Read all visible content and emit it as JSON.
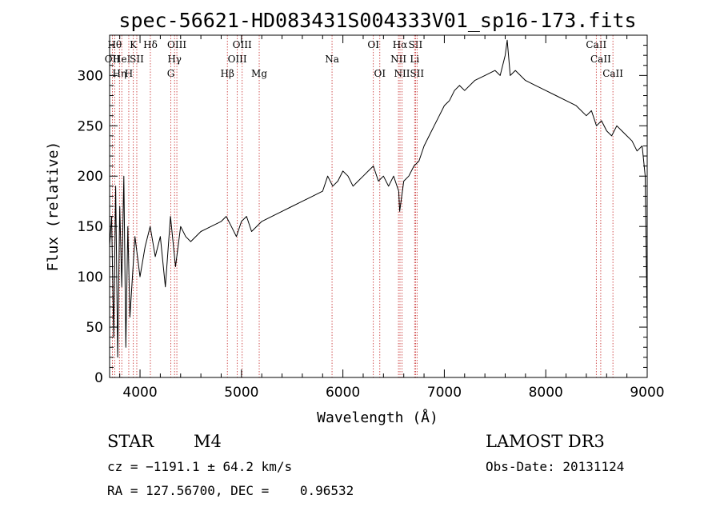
{
  "chart_data": {
    "type": "line",
    "title": "spec-56621-HD083431S004333V01_sp16-173.fits",
    "xlabel": "Wavelength (Å)",
    "ylabel": "Flux (relative)",
    "xlim": [
      3700,
      9000
    ],
    "ylim": [
      0,
      340
    ],
    "x_ticks": [
      4000,
      5000,
      6000,
      7000,
      8000,
      9000
    ],
    "y_ticks": [
      0,
      50,
      100,
      150,
      200,
      250,
      300
    ],
    "grid": false,
    "series": [
      {
        "x": [
          3700,
          3720,
          3740,
          3760,
          3780,
          3800,
          3820,
          3840,
          3860,
          3880,
          3900,
          3950,
          4000,
          4050,
          4100,
          4150,
          4200,
          4250,
          4300,
          4350,
          4400,
          4450,
          4500,
          4600,
          4700,
          4800,
          4850,
          4900,
          4950,
          5000,
          5050,
          5100,
          5200,
          5300,
          5400,
          5500,
          5600,
          5700,
          5800,
          5850,
          5900,
          5950,
          6000,
          6050,
          6100,
          6150,
          6200,
          6250,
          6300,
          6350,
          6400,
          6450,
          6500,
          6550,
          6560,
          6600,
          6650,
          6700,
          6750,
          6800,
          6850,
          6900,
          6950,
          7000,
          7050,
          7100,
          7150,
          7200,
          7300,
          7400,
          7500,
          7550,
          7600,
          7620,
          7650,
          7700,
          7800,
          7900,
          8000,
          8100,
          8200,
          8300,
          8400,
          8450,
          8500,
          8550,
          8600,
          8650,
          8700,
          8750,
          8800,
          8850,
          8900,
          8950,
          8980,
          9000
        ],
        "y": [
          130,
          160,
          40,
          190,
          20,
          170,
          90,
          200,
          30,
          150,
          60,
          140,
          100,
          130,
          150,
          120,
          140,
          90,
          160,
          110,
          150,
          140,
          135,
          145,
          150,
          155,
          160,
          150,
          140,
          155,
          160,
          145,
          155,
          160,
          165,
          170,
          175,
          180,
          185,
          200,
          190,
          195,
          205,
          200,
          190,
          195,
          200,
          205,
          210,
          195,
          200,
          190,
          200,
          185,
          165,
          195,
          200,
          210,
          215,
          230,
          240,
          250,
          260,
          270,
          275,
          285,
          290,
          285,
          295,
          300,
          305,
          300,
          320,
          335,
          300,
          305,
          295,
          290,
          285,
          280,
          275,
          270,
          260,
          265,
          250,
          255,
          245,
          240,
          250,
          245,
          240,
          235,
          225,
          230,
          200,
          50
        ]
      }
    ],
    "spectral_lines": [
      {
        "x": 3727,
        "label": "OII",
        "row": 1
      },
      {
        "x": 3750,
        "label": "Hθ",
        "row": 0
      },
      {
        "x": 3797,
        "label": "Hη",
        "row": 2
      },
      {
        "x": 3820,
        "label": "HeI",
        "row": 1
      },
      {
        "x": 3889,
        "label": "H",
        "row": 2
      },
      {
        "x": 3934,
        "label": "K",
        "row": 0
      },
      {
        "x": 3968,
        "label": "SII",
        "row": 1
      },
      {
        "x": 4102,
        "label": "Hδ",
        "row": 0
      },
      {
        "x": 4304,
        "label": "G",
        "row": 2
      },
      {
        "x": 4340,
        "label": "Hγ",
        "row": 1
      },
      {
        "x": 4363,
        "label": "OIII",
        "row": 0
      },
      {
        "x": 4861,
        "label": "Hβ",
        "row": 2
      },
      {
        "x": 4959,
        "label": "OIII",
        "row": 1
      },
      {
        "x": 5007,
        "label": "OIII",
        "row": 0
      },
      {
        "x": 5175,
        "label": "Mg",
        "row": 2
      },
      {
        "x": 5893,
        "label": "Na",
        "row": 1
      },
      {
        "x": 6300,
        "label": "OI",
        "row": 0
      },
      {
        "x": 6364,
        "label": "OI",
        "row": 2
      },
      {
        "x": 6548,
        "label": "NII",
        "row": 1
      },
      {
        "x": 6563,
        "label": "Hα",
        "row": 0
      },
      {
        "x": 6583,
        "label": "NII",
        "row": 2
      },
      {
        "x": 6707,
        "label": "Li",
        "row": 1
      },
      {
        "x": 6716,
        "label": "SII",
        "row": 0
      },
      {
        "x": 6731,
        "label": "SII",
        "row": 2
      },
      {
        "x": 8498,
        "label": "CaII",
        "row": 0
      },
      {
        "x": 8542,
        "label": "CaII",
        "row": 1
      },
      {
        "x": 8662,
        "label": "CaII",
        "row": 2
      }
    ]
  },
  "info": {
    "object_class": "STAR",
    "subclass": "M4",
    "survey": "LAMOST DR3",
    "cz": "cz = −1191.1 ± 64.2 km/s",
    "obs_date": "Obs-Date: 20131124",
    "coords": "RA = 127.56700, DEC =    0.96532"
  }
}
